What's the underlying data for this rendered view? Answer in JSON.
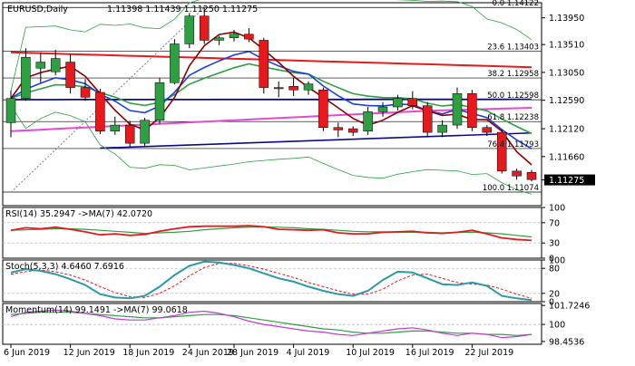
{
  "chart_data": {
    "type": "candlestick",
    "symbol": "EURUSD,Daily",
    "ohlc_header": "1.11398 1.11439 1.11250 1.11275",
    "current_price": "1.11275",
    "colors": {
      "bull": "#2ea043",
      "bear": "#e8191c",
      "price_axis_bg": "#000000",
      "fib_line": "#000000"
    },
    "main": {
      "ylim": [
        1.1085,
        1.142
      ],
      "y_ticks": [
        "1.13950",
        "1.13510",
        "1.13050",
        "1.12590",
        "1.12120",
        "1.11660",
        "1.11275"
      ],
      "fib_levels": [
        {
          "label": "0.0 1.14122",
          "value": 1.14122
        },
        {
          "label": "23.6 1.13403",
          "value": 1.13403
        },
        {
          "label": "38.2 1.12958",
          "value": 1.12958
        },
        {
          "label": "50.0 1.12598",
          "value": 1.12598
        },
        {
          "label": "61.8 1.12238",
          "value": 1.12238
        },
        {
          "label": "76.4 1.11793",
          "value": 1.11793
        },
        {
          "label": "100.0 1.11074",
          "value": 1.11074
        }
      ],
      "candles": [
        {
          "o": 1.1222,
          "h": 1.1275,
          "l": 1.1198,
          "c": 1.1262
        },
        {
          "o": 1.1262,
          "h": 1.1345,
          "l": 1.1258,
          "c": 1.133
        },
        {
          "o": 1.1312,
          "h": 1.1338,
          "l": 1.1288,
          "c": 1.1322
        },
        {
          "o": 1.1306,
          "h": 1.1342,
          "l": 1.13,
          "c": 1.1328
        },
        {
          "o": 1.1322,
          "h": 1.1335,
          "l": 1.127,
          "c": 1.128
        },
        {
          "o": 1.128,
          "h": 1.1294,
          "l": 1.1258,
          "c": 1.1264
        },
        {
          "o": 1.1272,
          "h": 1.1278,
          "l": 1.1203,
          "c": 1.1208
        },
        {
          "o": 1.1208,
          "h": 1.1232,
          "l": 1.1202,
          "c": 1.1218
        },
        {
          "o": 1.1218,
          "h": 1.1225,
          "l": 1.1182,
          "c": 1.1188
        },
        {
          "o": 1.1188,
          "h": 1.123,
          "l": 1.1182,
          "c": 1.1226
        },
        {
          "o": 1.1226,
          "h": 1.1296,
          "l": 1.122,
          "c": 1.1288
        },
        {
          "o": 1.1288,
          "h": 1.136,
          "l": 1.1285,
          "c": 1.1352
        },
        {
          "o": 1.1352,
          "h": 1.1403,
          "l": 1.1345,
          "c": 1.1398
        },
        {
          "o": 1.1398,
          "h": 1.1412,
          "l": 1.1352,
          "c": 1.1358
        },
        {
          "o": 1.1358,
          "h": 1.1365,
          "l": 1.135,
          "c": 1.1362
        },
        {
          "o": 1.1362,
          "h": 1.1375,
          "l": 1.1356,
          "c": 1.1368
        },
        {
          "o": 1.1368,
          "h": 1.1378,
          "l": 1.1355,
          "c": 1.136
        },
        {
          "o": 1.1358,
          "h": 1.1362,
          "l": 1.127,
          "c": 1.128
        },
        {
          "o": 1.128,
          "h": 1.129,
          "l": 1.1264,
          "c": 1.1278
        },
        {
          "o": 1.1282,
          "h": 1.1296,
          "l": 1.1266,
          "c": 1.1276
        },
        {
          "o": 1.1276,
          "h": 1.129,
          "l": 1.1268,
          "c": 1.1286
        },
        {
          "o": 1.1276,
          "h": 1.128,
          "l": 1.1208,
          "c": 1.1214
        },
        {
          "o": 1.1214,
          "h": 1.1222,
          "l": 1.1198,
          "c": 1.121
        },
        {
          "o": 1.1212,
          "h": 1.1216,
          "l": 1.12,
          "c": 1.1206
        },
        {
          "o": 1.1208,
          "h": 1.1248,
          "l": 1.1202,
          "c": 1.124
        },
        {
          "o": 1.124,
          "h": 1.1256,
          "l": 1.1232,
          "c": 1.1248
        },
        {
          "o": 1.1248,
          "h": 1.1268,
          "l": 1.1242,
          "c": 1.1262
        },
        {
          "o": 1.1262,
          "h": 1.1274,
          "l": 1.1244,
          "c": 1.125
        },
        {
          "o": 1.125,
          "h": 1.1256,
          "l": 1.1198,
          "c": 1.1206
        },
        {
          "o": 1.1206,
          "h": 1.1226,
          "l": 1.1198,
          "c": 1.1218
        },
        {
          "o": 1.1218,
          "h": 1.128,
          "l": 1.1212,
          "c": 1.127
        },
        {
          "o": 1.127,
          "h": 1.1276,
          "l": 1.1208,
          "c": 1.1214
        },
        {
          "o": 1.1214,
          "h": 1.1218,
          "l": 1.12,
          "c": 1.1206
        },
        {
          "o": 1.1206,
          "h": 1.121,
          "l": 1.1138,
          "c": 1.1142
        },
        {
          "o": 1.1142,
          "h": 1.1146,
          "l": 1.1128,
          "c": 1.1134
        },
        {
          "o": 1.114,
          "h": 1.1144,
          "l": 1.1125,
          "c": 1.1128
        }
      ]
    },
    "rsi": {
      "label": "RSI(14) 35.2947  ->MA(7) 42.0720",
      "ylim": [
        0,
        100
      ],
      "y_ticks": [
        "100",
        "70",
        "30",
        "0"
      ],
      "rsi_values": [
        55,
        60,
        58,
        61,
        57,
        52,
        46,
        48,
        45,
        47,
        53,
        58,
        62,
        63,
        63,
        63,
        64,
        62,
        57,
        56,
        55,
        56,
        50,
        48,
        48,
        51,
        52,
        53,
        50,
        49,
        51,
        55,
        48,
        40,
        37,
        35
      ],
      "ma_values": [
        55,
        56,
        57,
        58,
        58,
        57,
        55,
        53,
        51,
        49,
        50,
        51,
        53,
        56,
        58,
        60,
        61,
        62,
        61,
        60,
        58,
        57,
        55,
        53,
        52,
        52,
        51,
        51,
        51,
        50,
        51,
        51,
        50,
        48,
        45,
        42
      ]
    },
    "stoch": {
      "label": "Stoch(5,3,3) 4.6460 7.6916",
      "ylim": [
        0,
        100
      ],
      "y_ticks": [
        "100",
        "80",
        "20",
        "0"
      ],
      "k_values": [
        70,
        78,
        74,
        66,
        54,
        40,
        18,
        10,
        8,
        14,
        36,
        64,
        86,
        96,
        94,
        88,
        80,
        68,
        56,
        48,
        36,
        26,
        18,
        14,
        26,
        52,
        72,
        70,
        56,
        42,
        40,
        46,
        38,
        14,
        8,
        4
      ],
      "d_values": [
        66,
        72,
        76,
        72,
        64,
        52,
        36,
        22,
        12,
        10,
        20,
        38,
        62,
        82,
        92,
        92,
        86,
        78,
        68,
        58,
        46,
        36,
        26,
        18,
        18,
        30,
        50,
        64,
        66,
        56,
        46,
        42,
        40,
        30,
        18,
        8
      ]
    },
    "momentum": {
      "label": "Momentum(14) 99.1491  ->MA(7) 99.0618",
      "ylim": [
        98.2,
        101.9
      ],
      "y_ticks": [
        "101.7246",
        "100",
        "98.4536"
      ],
      "mom_values": [
        100.7,
        101.1,
        101.2,
        101.3,
        101.2,
        101.0,
        100.8,
        100.5,
        100.4,
        100.4,
        100.6,
        100.8,
        101.1,
        101.2,
        101.0,
        100.7,
        100.3,
        100.0,
        99.8,
        99.6,
        99.4,
        99.3,
        99.1,
        99.0,
        99.2,
        99.4,
        99.6,
        99.7,
        99.5,
        99.2,
        99.0,
        99.2,
        99.1,
        98.8,
        98.9,
        99.1
      ],
      "ma_values": [
        100.9,
        101.0,
        101.1,
        101.1,
        101.1,
        101.0,
        100.9,
        100.8,
        100.7,
        100.6,
        100.6,
        100.7,
        100.8,
        100.9,
        100.9,
        100.8,
        100.6,
        100.4,
        100.2,
        100.0,
        99.8,
        99.6,
        99.5,
        99.3,
        99.2,
        99.2,
        99.3,
        99.4,
        99.4,
        99.3,
        99.2,
        99.2,
        99.1,
        99.1,
        99.0,
        99.1
      ]
    },
    "x_ticks": [
      "6 Jun 2019",
      "12 Jun 2019",
      "18 Jun 2019",
      "24 Jun 2019",
      "28 Jun 2019",
      "4 Jul 2019",
      "10 Jul 2019",
      "16 Jul 2019",
      "22 Jul 2019"
    ]
  }
}
